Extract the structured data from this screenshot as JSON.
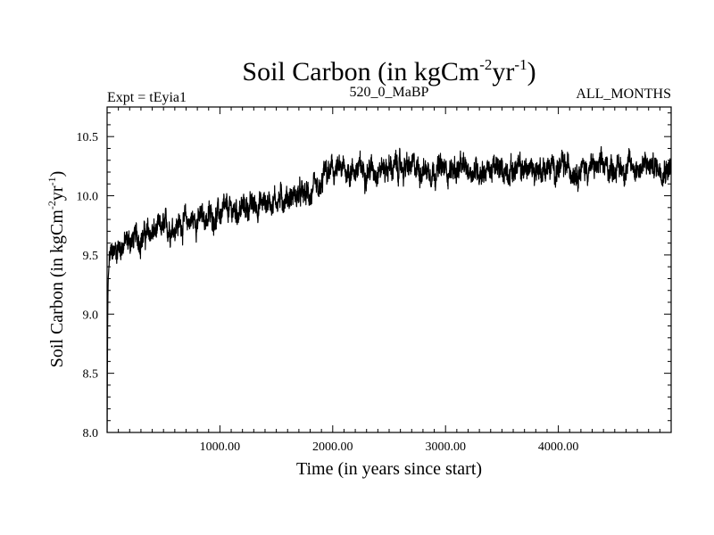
{
  "chart_data": {
    "type": "line",
    "title": {
      "main": "Soil Carbon (in kgCm",
      "sup1": "-2",
      "mid": "yr",
      "sup2": "-1",
      "end": ")"
    },
    "subtitle_left": "Expt = tEyia1",
    "subtitle_center": "520_0_MaBP",
    "subtitle_right": "ALL_MONTHS",
    "xlabel": "Time (in years since start)",
    "ylabel": {
      "main": "Soil Carbon (in kgCm",
      "sup1": "-2",
      "mid": "yr",
      "sup2": "-1",
      "end": ")"
    },
    "xlim": [
      0,
      5000
    ],
    "ylim": [
      8.0,
      10.75
    ],
    "x_ticks": [
      {
        "value": 1000,
        "label": "1000.00"
      },
      {
        "value": 2000,
        "label": "2000.00"
      },
      {
        "value": 3000,
        "label": "3000.00"
      },
      {
        "value": 4000,
        "label": "4000.00"
      }
    ],
    "y_ticks": [
      {
        "value": 8.0,
        "label": "8.0"
      },
      {
        "value": 8.5,
        "label": "8.5"
      },
      {
        "value": 9.0,
        "label": "9.0"
      },
      {
        "value": 9.5,
        "label": "9.5"
      },
      {
        "value": 10.0,
        "label": "10.0"
      },
      {
        "value": 10.5,
        "label": "10.5"
      }
    ],
    "series": [
      {
        "name": "Soil Carbon",
        "color": "#000000",
        "noise_amplitude": 0.1,
        "x": [
          0,
          5,
          10,
          20,
          40,
          80,
          150,
          300,
          500,
          700,
          900,
          1100,
          1300,
          1500,
          1700,
          1900,
          1920,
          1930,
          2000,
          2200,
          2500,
          3000,
          3500,
          4000,
          4500,
          5000
        ],
        "values": [
          8.0,
          9.0,
          9.3,
          9.45,
          9.5,
          9.55,
          9.6,
          9.65,
          9.72,
          9.78,
          9.82,
          9.87,
          9.92,
          9.97,
          10.0,
          10.02,
          10.2,
          10.18,
          10.2,
          10.22,
          10.24,
          10.22,
          10.22,
          10.23,
          10.24,
          10.25
        ]
      }
    ]
  }
}
